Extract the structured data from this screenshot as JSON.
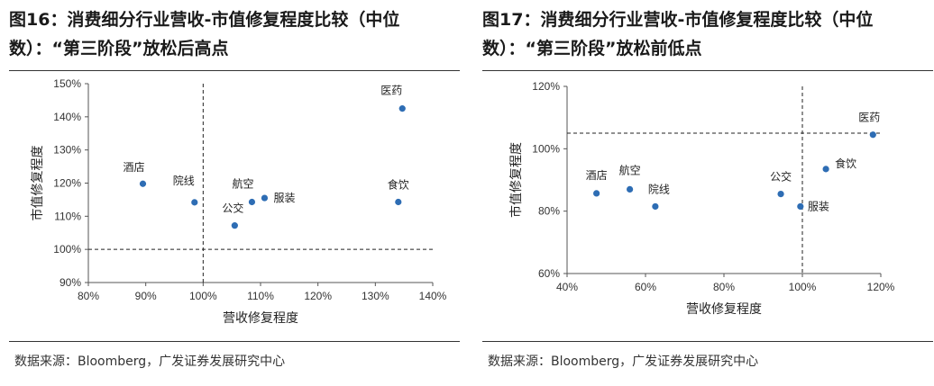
{
  "figures": [
    {
      "title_line1": "图16：消费细分行业营收-市值修复程度比较（中位",
      "title_line2": "数）：“第三阶段”放松后高点",
      "source": "数据来源：Bloomberg，广发证券发展研究中心"
    },
    {
      "title_line1": "图17：消费细分行业营收-市值修复程度比较（中位",
      "title_line2": "数）：“第三阶段”放松前低点",
      "source": "数据来源：Bloomberg，广发证券发展研究中心"
    }
  ],
  "chart_data": [
    {
      "type": "scatter",
      "xlabel": "营收修复程度",
      "ylabel": "市值修复程度",
      "xlim": [
        0.8,
        1.4
      ],
      "ylim": [
        0.9,
        1.5
      ],
      "xticks": [
        "80%",
        "90%",
        "100%",
        "110%",
        "120%",
        "130%",
        "140%"
      ],
      "yticks": [
        "90%",
        "100%",
        "110%",
        "120%",
        "130%",
        "140%",
        "150%"
      ],
      "ref_lines": {
        "x": 1.0,
        "y": 1.0
      },
      "point_color": "#2E6DB4",
      "points": [
        {
          "label": "酒店",
          "x": 0.895,
          "y": 1.198
        },
        {
          "label": "院线",
          "x": 0.985,
          "y": 1.142
        },
        {
          "label": "航空",
          "x": 1.085,
          "y": 1.143
        },
        {
          "label": "服装",
          "x": 1.107,
          "y": 1.155
        },
        {
          "label": "公交",
          "x": 1.055,
          "y": 1.072
        },
        {
          "label": "医药",
          "x": 1.347,
          "y": 1.425
        },
        {
          "label": "食饮",
          "x": 1.34,
          "y": 1.143
        }
      ]
    },
    {
      "type": "scatter",
      "xlabel": "营收修复程度",
      "ylabel": "市值修复程度",
      "xlim": [
        0.4,
        1.2
      ],
      "ylim": [
        0.6,
        1.2
      ],
      "xticks": [
        "40%",
        "60%",
        "80%",
        "100%",
        "120%"
      ],
      "yticks": [
        "60%",
        "80%",
        "100%",
        "120%"
      ],
      "ref_lines": {
        "x": 1.0,
        "y": 1.05
      },
      "point_color": "#2E6DB4",
      "points": [
        {
          "label": "酒店",
          "x": 0.475,
          "y": 0.857
        },
        {
          "label": "航空",
          "x": 0.56,
          "y": 0.87
        },
        {
          "label": "院线",
          "x": 0.625,
          "y": 0.815
        },
        {
          "label": "公交",
          "x": 0.945,
          "y": 0.855
        },
        {
          "label": "服装",
          "x": 0.995,
          "y": 0.815
        },
        {
          "label": "食饮",
          "x": 1.06,
          "y": 0.935
        },
        {
          "label": "医药",
          "x": 1.18,
          "y": 1.045
        }
      ]
    }
  ]
}
